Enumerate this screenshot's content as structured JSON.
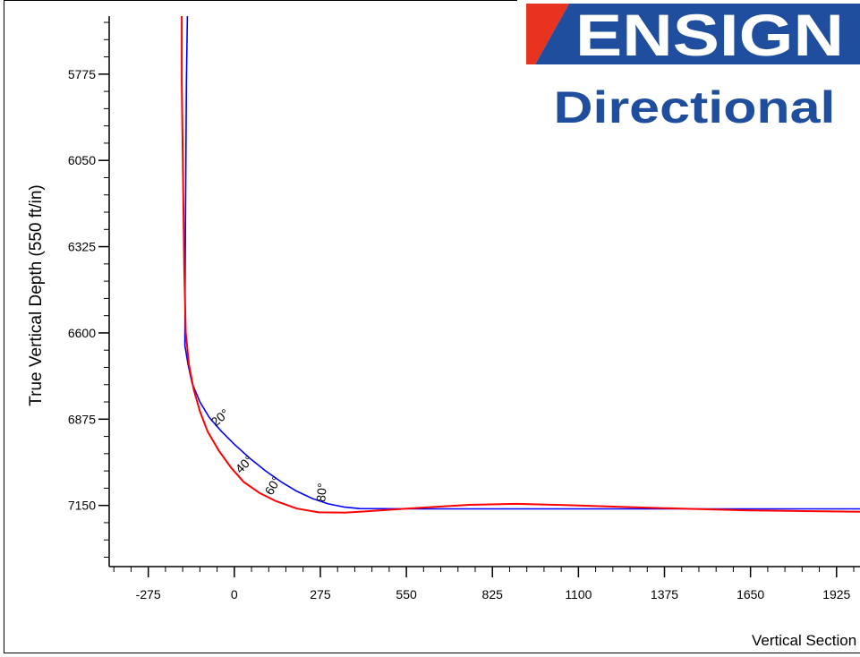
{
  "logo": {
    "brand": "ENSIGN",
    "division": "Directional"
  },
  "colors": {
    "plan_line": "#0000ff",
    "actual_line": "#ff0000",
    "axis": "#000000",
    "logo_blue": "#1f4e9e",
    "logo_red": "#e8331f"
  },
  "chart_data": {
    "type": "line",
    "xlabel": "Vertical Section",
    "ylabel": "True Vertical Depth (550 ft/in)",
    "x_ticks": [
      -275,
      0,
      275,
      550,
      825,
      1100,
      1375,
      1650,
      1925
    ],
    "y_ticks": [
      5775,
      6050,
      6325,
      6600,
      6875,
      7150
    ],
    "xlim": [
      -400,
      2000
    ],
    "ylim": [
      5590,
      7345
    ],
    "y_inverted": true,
    "grid": false,
    "series": [
      {
        "color": "#0000ff",
        "points": [
          [
            -150,
            5590
          ],
          [
            -153,
            5800
          ],
          [
            -155,
            6100
          ],
          [
            -157,
            6400
          ],
          [
            -158,
            6640
          ],
          [
            -148,
            6700
          ],
          [
            -135,
            6760
          ],
          [
            -110,
            6820
          ],
          [
            -80,
            6870
          ],
          [
            -40,
            6915
          ],
          [
            0,
            6955
          ],
          [
            50,
            7000
          ],
          [
            100,
            7040
          ],
          [
            150,
            7075
          ],
          [
            200,
            7105
          ],
          [
            250,
            7128
          ],
          [
            300,
            7145
          ],
          [
            350,
            7155
          ],
          [
            400,
            7160
          ],
          [
            600,
            7161
          ],
          [
            800,
            7161
          ],
          [
            1100,
            7161
          ],
          [
            1400,
            7161
          ],
          [
            1700,
            7161
          ],
          [
            2000,
            7161
          ]
        ]
      },
      {
        "color": "#ff0000",
        "points": [
          [
            -168,
            5590
          ],
          [
            -168,
            5800
          ],
          [
            -164,
            6100
          ],
          [
            -160,
            6400
          ],
          [
            -155,
            6600
          ],
          [
            -145,
            6700
          ],
          [
            -130,
            6780
          ],
          [
            -110,
            6850
          ],
          [
            -85,
            6915
          ],
          [
            -50,
            6975
          ],
          [
            -10,
            7030
          ],
          [
            30,
            7075
          ],
          [
            80,
            7110
          ],
          [
            130,
            7135
          ],
          [
            200,
            7160
          ],
          [
            270,
            7172
          ],
          [
            350,
            7173
          ],
          [
            400,
            7170
          ],
          [
            550,
            7160
          ],
          [
            750,
            7148
          ],
          [
            900,
            7145
          ],
          [
            1100,
            7150
          ],
          [
            1350,
            7158
          ],
          [
            1650,
            7166
          ],
          [
            2000,
            7170
          ]
        ]
      }
    ],
    "annotations": [
      {
        "label": "20°",
        "x": -60,
        "y": 6900,
        "rotation": -40
      },
      {
        "label": "40°",
        "x": 20,
        "y": 7050,
        "rotation": -45
      },
      {
        "label": "60°",
        "x": 120,
        "y": 7120,
        "rotation": -60
      },
      {
        "label": "80°",
        "x": 290,
        "y": 7140,
        "rotation": -85
      }
    ]
  }
}
